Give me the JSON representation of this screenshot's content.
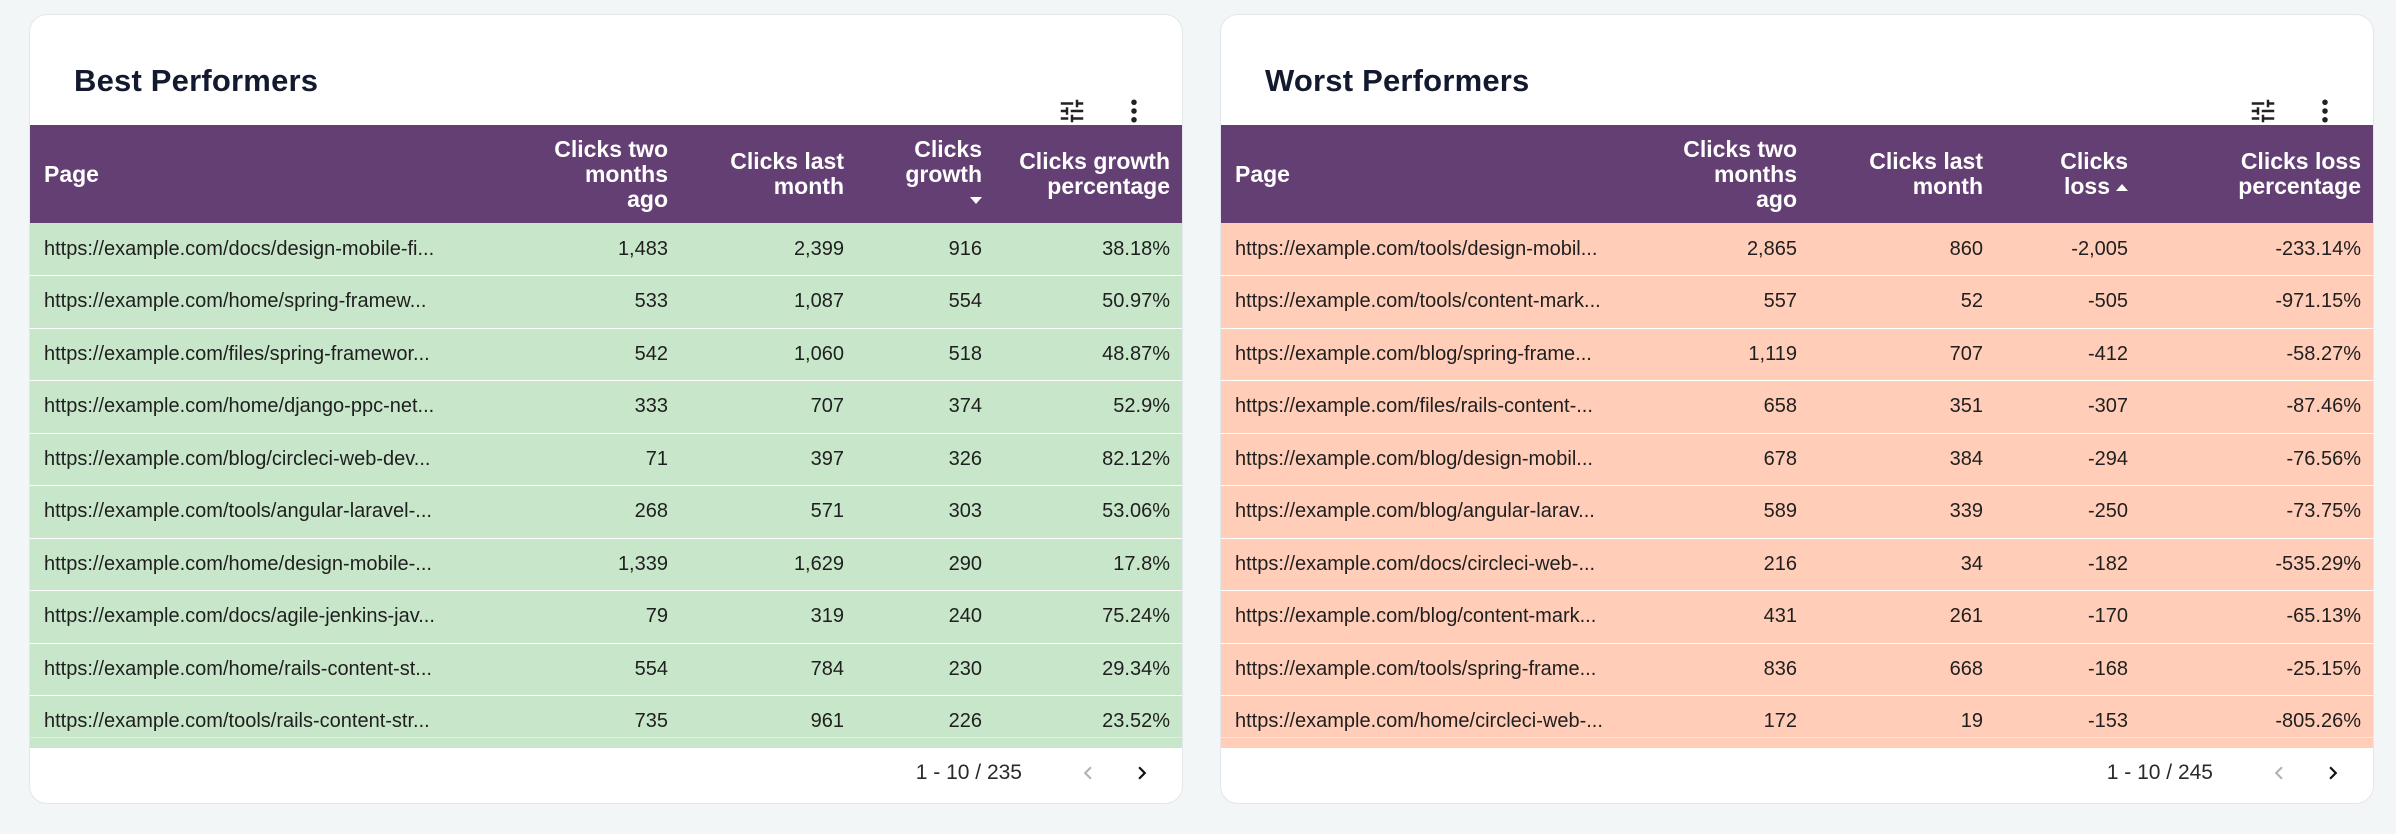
{
  "colors": {
    "header_bg": "#643f73",
    "best_row_bg": "#c8e6c9",
    "worst_row_bg": "#ffcdb8",
    "page_bg": "#f3f6f7"
  },
  "best": {
    "title": "Best Performers",
    "tools": {
      "filter_icon": "tune-icon",
      "menu_icon": "more-vert-icon"
    },
    "headers": {
      "page": "Page",
      "two_months": [
        "Clicks two",
        "months",
        "ago"
      ],
      "last_month": [
        "Clicks last",
        "month"
      ],
      "change": [
        "Clicks",
        "growth"
      ],
      "percentage": [
        "Clicks growth",
        "percentage"
      ]
    },
    "sort_indicator": "descending",
    "rows": [
      {
        "page": "https://example.com/docs/design-mobile-fi...",
        "two_months": "1,483",
        "last_month": "2,399",
        "change": "916",
        "percentage": "38.18%"
      },
      {
        "page": "https://example.com/home/spring-framew...",
        "two_months": "533",
        "last_month": "1,087",
        "change": "554",
        "percentage": "50.97%"
      },
      {
        "page": "https://example.com/files/spring-framewor...",
        "two_months": "542",
        "last_month": "1,060",
        "change": "518",
        "percentage": "48.87%"
      },
      {
        "page": "https://example.com/home/django-ppc-net...",
        "two_months": "333",
        "last_month": "707",
        "change": "374",
        "percentage": "52.9%"
      },
      {
        "page": "https://example.com/blog/circleci-web-dev...",
        "two_months": "71",
        "last_month": "397",
        "change": "326",
        "percentage": "82.12%"
      },
      {
        "page": "https://example.com/tools/angular-laravel-...",
        "two_months": "268",
        "last_month": "571",
        "change": "303",
        "percentage": "53.06%"
      },
      {
        "page": "https://example.com/home/design-mobile-...",
        "two_months": "1,339",
        "last_month": "1,629",
        "change": "290",
        "percentage": "17.8%"
      },
      {
        "page": "https://example.com/docs/agile-jenkins-jav...",
        "two_months": "79",
        "last_month": "319",
        "change": "240",
        "percentage": "75.24%"
      },
      {
        "page": "https://example.com/home/rails-content-st...",
        "two_months": "554",
        "last_month": "784",
        "change": "230",
        "percentage": "29.34%"
      },
      {
        "page": "https://example.com/tools/rails-content-str...",
        "two_months": "735",
        "last_month": "961",
        "change": "226",
        "percentage": "23.52%"
      }
    ],
    "pager": {
      "label": "1 - 10 / 235",
      "prev_icon": "chevron-left-icon",
      "next_icon": "chevron-right-icon"
    }
  },
  "worst": {
    "title": "Worst Performers",
    "tools": {
      "filter_icon": "tune-icon",
      "menu_icon": "more-vert-icon"
    },
    "headers": {
      "page": "Page",
      "two_months": [
        "Clicks two",
        "months",
        "ago"
      ],
      "last_month": [
        "Clicks last",
        "month"
      ],
      "change": [
        "Clicks",
        "loss"
      ],
      "percentage": [
        "Clicks loss",
        "percentage"
      ]
    },
    "sort_indicator": "ascending",
    "rows": [
      {
        "page": "https://example.com/tools/design-mobil...",
        "two_months": "2,865",
        "last_month": "860",
        "change": "-2,005",
        "percentage": "-233.14%"
      },
      {
        "page": "https://example.com/tools/content-mark...",
        "two_months": "557",
        "last_month": "52",
        "change": "-505",
        "percentage": "-971.15%"
      },
      {
        "page": "https://example.com/blog/spring-frame...",
        "two_months": "1,119",
        "last_month": "707",
        "change": "-412",
        "percentage": "-58.27%"
      },
      {
        "page": "https://example.com/files/rails-content-...",
        "two_months": "658",
        "last_month": "351",
        "change": "-307",
        "percentage": "-87.46%"
      },
      {
        "page": "https://example.com/blog/design-mobil...",
        "two_months": "678",
        "last_month": "384",
        "change": "-294",
        "percentage": "-76.56%"
      },
      {
        "page": "https://example.com/blog/angular-larav...",
        "two_months": "589",
        "last_month": "339",
        "change": "-250",
        "percentage": "-73.75%"
      },
      {
        "page": "https://example.com/docs/circleci-web-...",
        "two_months": "216",
        "last_month": "34",
        "change": "-182",
        "percentage": "-535.29%"
      },
      {
        "page": "https://example.com/blog/content-mark...",
        "two_months": "431",
        "last_month": "261",
        "change": "-170",
        "percentage": "-65.13%"
      },
      {
        "page": "https://example.com/tools/spring-frame...",
        "two_months": "836",
        "last_month": "668",
        "change": "-168",
        "percentage": "-25.15%"
      },
      {
        "page": "https://example.com/home/circleci-web-...",
        "two_months": "172",
        "last_month": "19",
        "change": "-153",
        "percentage": "-805.26%"
      }
    ],
    "pager": {
      "label": "1 - 10 / 245",
      "prev_icon": "chevron-left-icon",
      "next_icon": "chevron-right-icon"
    }
  }
}
